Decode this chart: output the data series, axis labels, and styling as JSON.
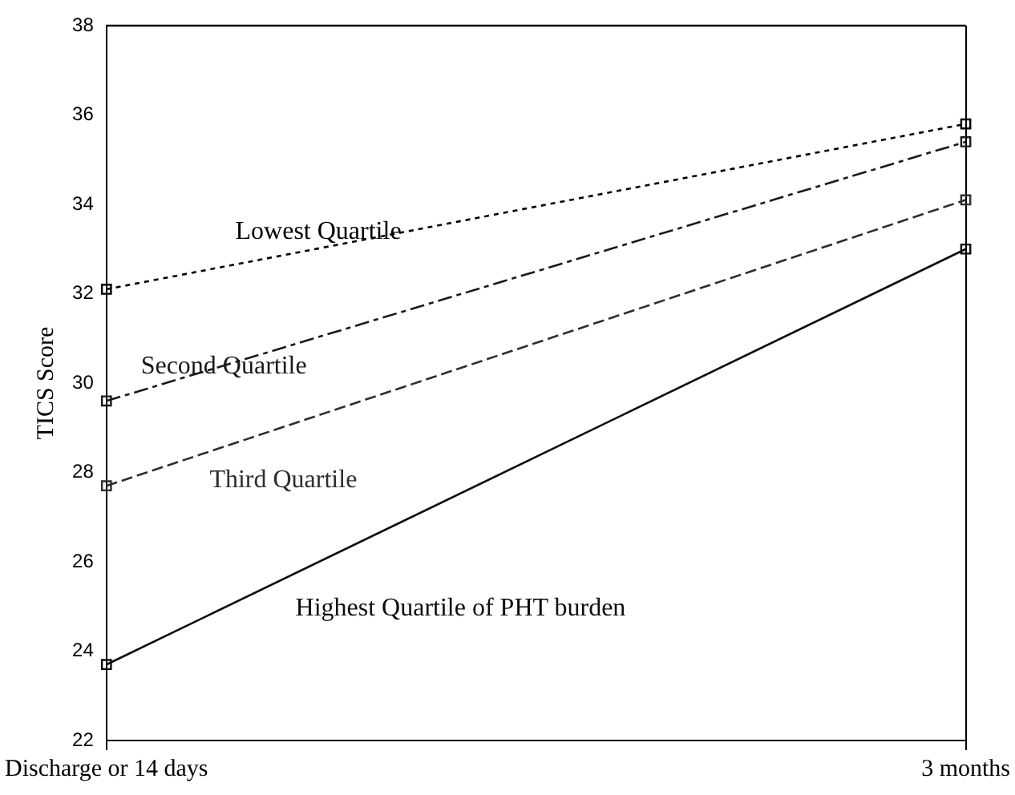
{
  "chart_data": {
    "type": "line",
    "ylabel": "TICS Score",
    "categories": [
      "Discharge or 14 days",
      "3 months"
    ],
    "series": [
      {
        "name": "Lowest Quartile",
        "color": "#000000",
        "values": [
          32.1,
          35.8
        ],
        "line_style": "dotted"
      },
      {
        "name": "Second Quartile",
        "color": "#1a1a1a",
        "values": [
          29.6,
          35.4
        ],
        "line_style": "dashdot"
      },
      {
        "name": "Third Quartile",
        "color": "#2e2e2e",
        "values": [
          27.7,
          34.1
        ],
        "line_style": "dashed"
      },
      {
        "name": "Highest Quartile of PHT burden",
        "color": "#0d0d0d",
        "values": [
          23.7,
          33.0
        ],
        "line_style": "solid"
      }
    ],
    "ylim": [
      22,
      38
    ],
    "yticks": [
      22,
      24,
      26,
      28,
      30,
      32,
      34,
      36,
      38
    ],
    "grid": "x",
    "legend": false,
    "marker": "square"
  }
}
